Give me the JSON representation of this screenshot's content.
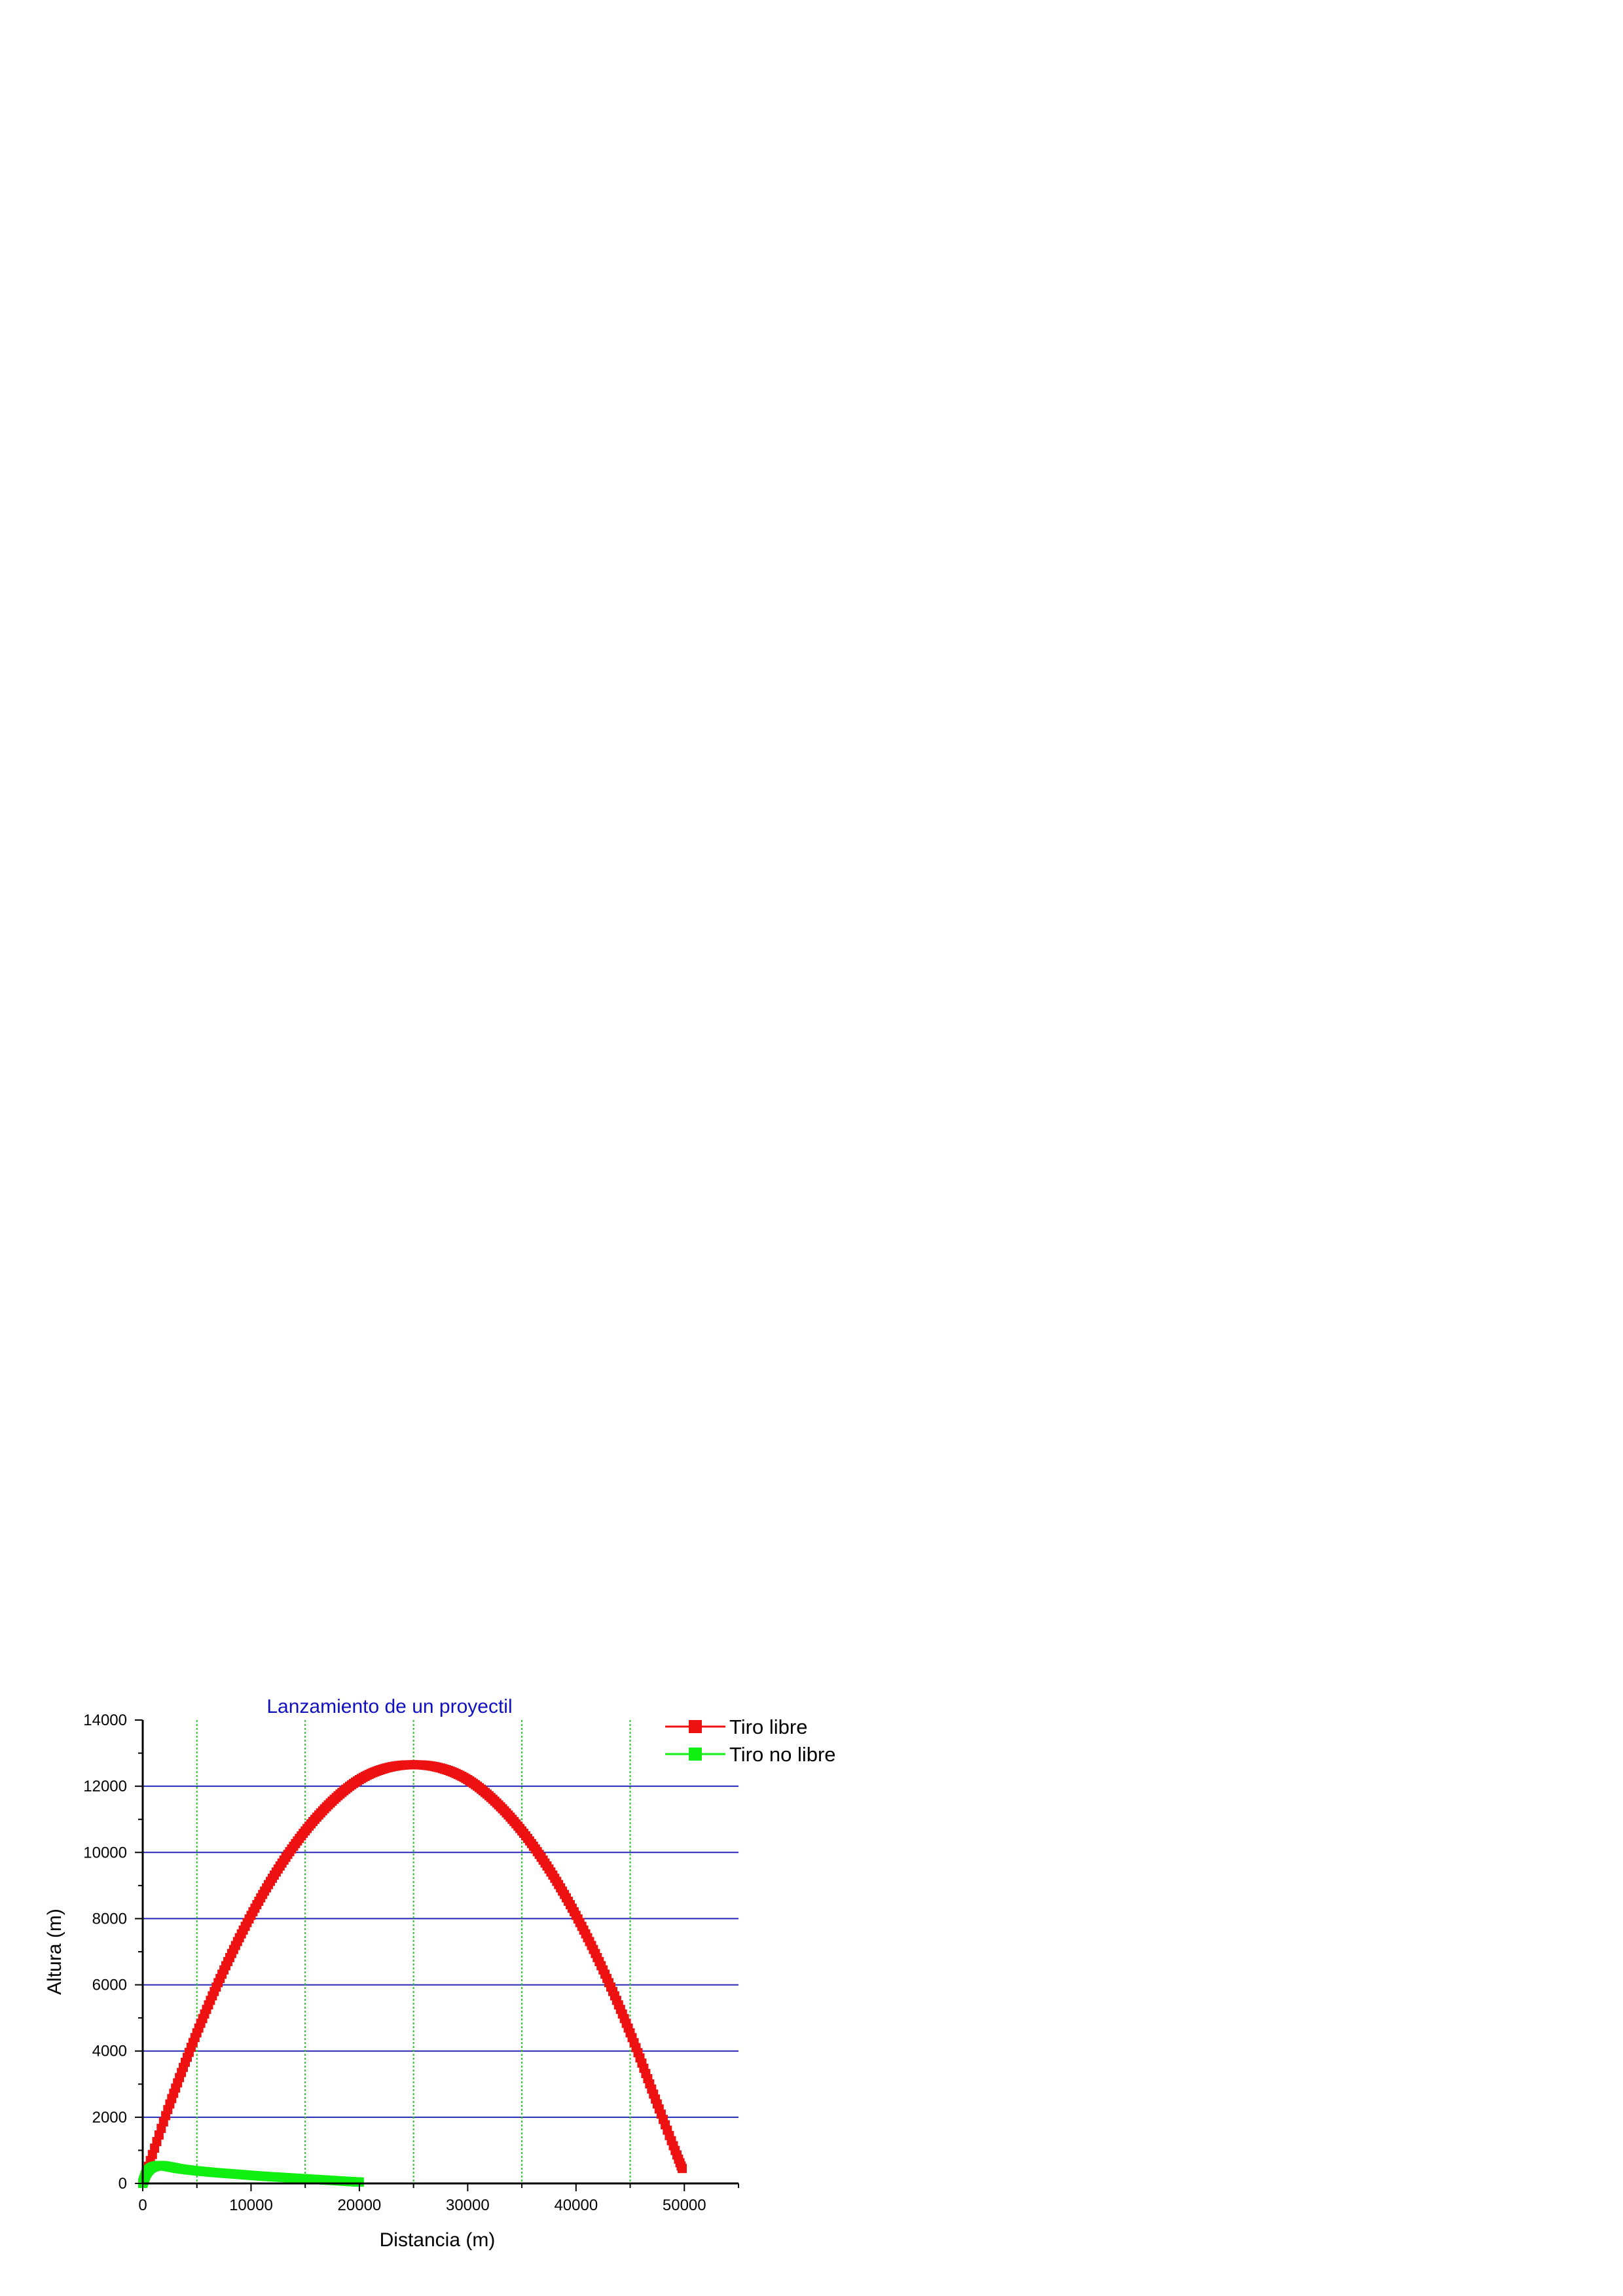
{
  "chart_data": {
    "type": "scatter",
    "title": "Lanzamiento de un proyectil",
    "xlabel": "Distancia (m)",
    "ylabel": "Altura (m)",
    "xlim": [
      0,
      55000
    ],
    "ylim": [
      0,
      14000
    ],
    "x_ticks": [
      0,
      10000,
      20000,
      30000,
      40000,
      50000
    ],
    "y_ticks": [
      0,
      2000,
      4000,
      6000,
      8000,
      10000,
      12000,
      14000
    ],
    "x_grid": [
      5000,
      15000,
      25000,
      35000,
      45000
    ],
    "y_grid": [
      2000,
      4000,
      6000,
      8000,
      10000,
      12000
    ],
    "grid": true,
    "legend_position": "top-right, outside plot area",
    "colors": {
      "title": "#1010c0",
      "x_grid": "#2fbf2f",
      "y_grid": "#2626b8",
      "tiro_libre": "#ee1111",
      "tiro_no_libre": "#11ee11"
    },
    "series": [
      {
        "name": "Tiro libre",
        "color": "#ee1111",
        "x": [
          0,
          2500,
          5000,
          7500,
          10000,
          12500,
          15000,
          17500,
          20000,
          22500,
          25000,
          27500,
          30000,
          32500,
          35000,
          37500,
          40000,
          42500,
          45000,
          47500,
          49800
        ],
        "y": [
          0,
          2400,
          4550,
          6450,
          8100,
          9500,
          10650,
          11550,
          12200,
          12550,
          12650,
          12550,
          12200,
          11550,
          10650,
          9500,
          8100,
          6450,
          4550,
          2400,
          450
        ]
      },
      {
        "name": "Tiro no libre",
        "color": "#11ee11",
        "x": [
          0,
          300,
          700,
          1200,
          1700,
          2500,
          3500,
          5000,
          7000,
          9000,
          11000,
          13000,
          15000,
          17000,
          19000,
          20000
        ],
        "y": [
          0,
          280,
          450,
          520,
          540,
          500,
          440,
          380,
          320,
          270,
          220,
          180,
          140,
          100,
          60,
          40
        ]
      }
    ]
  }
}
